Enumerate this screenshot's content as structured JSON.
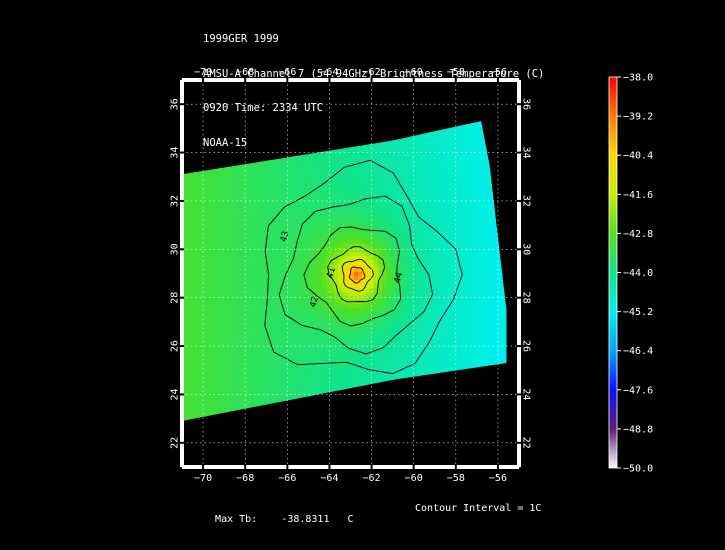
{
  "header": {
    "line1": "1999GER 1999",
    "line2": "AMSU-A Channel 7 (54.94GHz) Brightness Temperature (C)",
    "line3": "0920 Time: 2334 UTC",
    "line4": "NOAA-15"
  },
  "footer": {
    "max_label": "Max Tb:",
    "max_value": "-38.8311",
    "max_unit": "C",
    "contour_interval": "Contour Interval = 1C"
  },
  "colors": {
    "background": "#000000",
    "frame": "#ffffff",
    "grid": "#ffffff",
    "contour": "#000000",
    "colorbar_stops": [
      "#ffffff",
      "#5a1d7a",
      "#1010ff",
      "#00a5ff",
      "#00f0f0",
      "#10e38a",
      "#50e020",
      "#c8f000",
      "#ffd800",
      "#ff7a00",
      "#ff0000"
    ]
  },
  "chart_data": {
    "type": "heatmap",
    "title": "AMSU-A Channel 7 (54.94GHz) Brightness Temperature (C)",
    "xlim": [
      -71,
      -55
    ],
    "ylim": [
      21,
      37
    ],
    "x_ticks": [
      -70,
      -68,
      -66,
      -64,
      -62,
      -60,
      -58,
      -56
    ],
    "y_ticks": [
      22,
      24,
      26,
      28,
      30,
      32,
      34,
      36
    ],
    "x_tick_labels": [
      "−70",
      "−68",
      "−66",
      "−64",
      "−62",
      "−60",
      "−58",
      "−56"
    ],
    "y_tick_labels": [
      "22",
      "24",
      "26",
      "28",
      "30",
      "32",
      "34",
      "36"
    ],
    "grid": true,
    "colorbar": {
      "min": -50.0,
      "max": -38.0,
      "tick_values": [
        -38.0,
        -39.2,
        -40.4,
        -41.6,
        -42.8,
        -44.0,
        -45.2,
        -46.4,
        -47.6,
        -48.8,
        -50.0
      ],
      "tick_labels": [
        "−38.0",
        "−39.2",
        "−40.4",
        "−41.6",
        "−42.8",
        "−44.0",
        "−45.2",
        "−46.4",
        "−47.6",
        "−48.8",
        "−50.0"
      ]
    },
    "swath_polygon": [
      [
        -71,
        33.1
      ],
      [
        -61,
        34.5
      ],
      [
        -56.8,
        35.3
      ],
      [
        -56.4,
        33.5
      ],
      [
        -55.6,
        27.5
      ],
      [
        -55.6,
        25.3
      ],
      [
        -61,
        24.6
      ],
      [
        -71,
        22.9
      ]
    ],
    "field": {
      "center": [
        -62.7,
        28.95
      ],
      "peak_value": -38.83,
      "background_gradient": {
        "west": -43.0,
        "east": -45.3
      }
    },
    "contours": [
      {
        "level": -39,
        "radius_deg": 0.35,
        "label": "",
        "label_at": null
      },
      {
        "level": -40,
        "radius_deg": 0.7,
        "label": "",
        "label_at": null
      },
      {
        "level": -41,
        "radius_deg": 1.25,
        "label": "41",
        "label_at": [
          -63.8,
          29.0
        ]
      },
      {
        "level": -42,
        "radius_deg": 2.2,
        "label": "42",
        "label_at": [
          -64.6,
          27.8
        ]
      },
      {
        "level": -43,
        "radius_deg": 3.4,
        "label": "43",
        "label_at": [
          -66.0,
          30.5
        ]
      },
      {
        "level": -44,
        "radius_deg": 4.6,
        "label": "44",
        "label_at": [
          -60.6,
          28.8
        ]
      }
    ],
    "max_tb": -38.8311,
    "contour_interval": "1C"
  }
}
